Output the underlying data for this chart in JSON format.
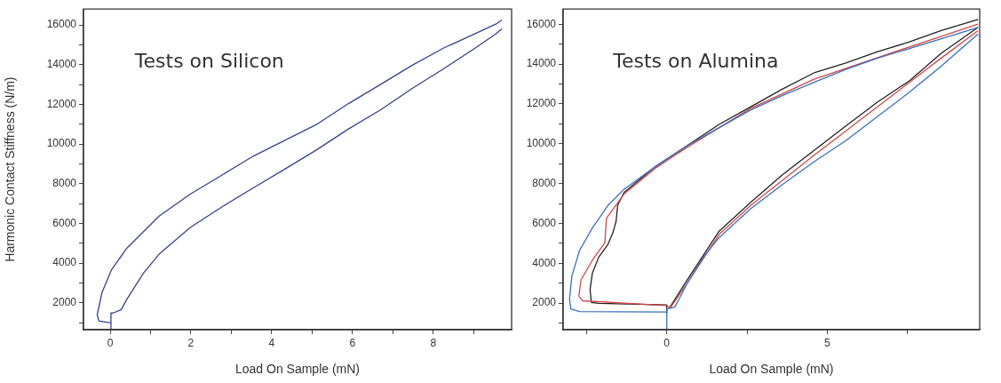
{
  "chart_data": [
    {
      "type": "line",
      "xlabel": "Load On Sample (mN)",
      "ylabel": "Harmonic Contact Stiffness (N/m)",
      "annotations": [
        "Tests on Silicon"
      ],
      "xlim": [
        -0.66,
        9.94
      ],
      "ylim": [
        650,
        16800
      ],
      "xticks": [
        0,
        {
          "value": 1,
          "label": null
        },
        2,
        {
          "value": 3,
          "label": null
        },
        4,
        {
          "value": 5,
          "label": null
        },
        6,
        {
          "value": 7,
          "label": null
        },
        8,
        {
          "value": 9,
          "label": null
        }
      ],
      "yticks": [
        {
          "value": 1000,
          "label": null
        },
        2000,
        {
          "value": 3000,
          "label": null
        },
        4000,
        {
          "value": 5000,
          "label": null
        },
        6000,
        {
          "value": 7000,
          "label": null
        },
        8000,
        {
          "value": 9000,
          "label": null
        },
        10000,
        {
          "value": 11000,
          "label": null
        },
        12000,
        {
          "value": 13000,
          "label": null
        },
        14000,
        {
          "value": 15000,
          "label": null
        },
        16000
      ],
      "series": [
        {
          "color": "#34448a",
          "x": [
            0.02,
            0.02,
            0.07,
            0.27,
            0.42,
            0.82,
            1.21,
            1.99,
            2.78,
            3.56,
            4.35,
            5.13,
            5.91,
            6.7,
            7.48,
            8.27,
            9.05,
            9.56,
            9.7
          ],
          "values": [
            700,
            1490,
            1490,
            1650,
            2200,
            3490,
            4450,
            5810,
            6850,
            7810,
            8770,
            9730,
            10770,
            11730,
            12800,
            13810,
            14850,
            15570,
            15800
          ]
        },
        {
          "color": "#34448a",
          "x": [
            9.7,
            9.56,
            9.05,
            8.27,
            7.48,
            6.7,
            5.91,
            5.13,
            4.35,
            3.56,
            2.78,
            1.99,
            1.21,
            0.42,
            0.03,
            -0.2,
            -0.32,
            -0.28,
            -0.05,
            0.02
          ],
          "values": [
            16250,
            16050,
            15570,
            14850,
            13970,
            13010,
            12050,
            11010,
            10210,
            9410,
            8450,
            7490,
            6370,
            4770,
            3650,
            2530,
            1410,
            1090,
            1010,
            1000
          ]
        }
      ]
    },
    {
      "type": "line",
      "xlabel": "Load On Sample (mN)",
      "annotations": [
        "Tests on Alumina"
      ],
      "xlim": [
        -3.23,
        9.75
      ],
      "ylim": [
        670,
        16760
      ],
      "xticks": [
        {
          "value": -2.5,
          "label": null
        },
        0,
        {
          "value": 2.5,
          "label": null
        },
        5,
        {
          "value": 7.5,
          "label": null
        }
      ],
      "yticks": [
        {
          "value": 1000,
          "label": null
        },
        2000,
        {
          "value": 3000,
          "label": null
        },
        4000,
        {
          "value": 5000,
          "label": null
        },
        6000,
        {
          "value": 7000,
          "label": null
        },
        8000,
        {
          "value": 9000,
          "label": null
        },
        10000,
        {
          "value": 11000,
          "label": null
        },
        12000,
        {
          "value": 13000,
          "label": null
        },
        14000,
        {
          "value": 15000,
          "label": null
        },
        16000
      ],
      "series": [
        {
          "color": "#3a6fc0",
          "x": [
            0,
            0,
            0.25,
            0.64,
            1.14,
            1.63,
            2.62,
            3.61,
            4.59,
            5.58,
            6.57,
            7.56,
            8.55,
            9.7
          ],
          "values": [
            700,
            1710,
            1800,
            3010,
            4310,
            5290,
            6750,
            7960,
            9100,
            10160,
            11370,
            12590,
            13890,
            15510
          ]
        },
        {
          "color": "#3a6fc0",
          "x": [
            9.7,
            8.55,
            7.56,
            6.57,
            5.58,
            4.59,
            3.61,
            2.62,
            1.63,
            0.64,
            -0.35,
            -1.33,
            -1.83,
            -2.32,
            -2.72,
            -2.96,
            -3.03,
            -2.99,
            -2.72,
            -0.05,
            0
          ],
          "values": [
            15840,
            15270,
            14780,
            14300,
            13730,
            13080,
            12430,
            11700,
            10810,
            9910,
            8860,
            7720,
            6910,
            5770,
            4640,
            3340,
            2200,
            1710,
            1580,
            1560,
            1560
          ]
        },
        {
          "color": "#d04848",
          "x": [
            0.1,
            0.64,
            1.63,
            2.62,
            4.59,
            6.57,
            8.55,
            9.7
          ],
          "values": [
            1750,
            3010,
            5450,
            6910,
            9420,
            11860,
            14300,
            15680
          ]
        },
        {
          "color": "#d04848",
          "x": [
            9.7,
            7.56,
            4.59,
            2.62,
            0.64,
            -0.35,
            -1.33,
            -1.88,
            -1.93,
            -2.32,
            -2.67,
            -2.74,
            -2.62,
            0,
            0.1
          ],
          "values": [
            16000,
            14860,
            13240,
            11780,
            9830,
            8780,
            7480,
            6260,
            5040,
            4150,
            3180,
            2360,
            2120,
            1880,
            1750
          ]
        },
        {
          "color": "#222222",
          "x": [
            0.1,
            0.64,
            1.63,
            2.62,
            3.61,
            4.59,
            5.58,
            6.57,
            7.56,
            8.55,
            9.7
          ],
          "values": [
            1800,
            3170,
            5610,
            7070,
            8450,
            9670,
            10890,
            12100,
            13160,
            14540,
            15840
          ]
        },
        {
          "color": "#222222",
          "x": [
            9.7,
            8.55,
            7.56,
            6.57,
            5.58,
            4.59,
            3.61,
            2.62,
            1.63,
            0.64,
            -0.35,
            -1.33,
            -1.53,
            -1.58,
            -1.68,
            -1.83,
            -2.12,
            -2.32,
            -2.39,
            -2.35,
            -2.12,
            0,
            0
          ],
          "values": [
            16240,
            15680,
            15110,
            14620,
            14050,
            13560,
            12750,
            11860,
            10970,
            9910,
            8860,
            7560,
            6910,
            6100,
            5530,
            4960,
            4310,
            3500,
            2690,
            2040,
            1990,
            1910,
            1480
          ]
        }
      ]
    }
  ]
}
